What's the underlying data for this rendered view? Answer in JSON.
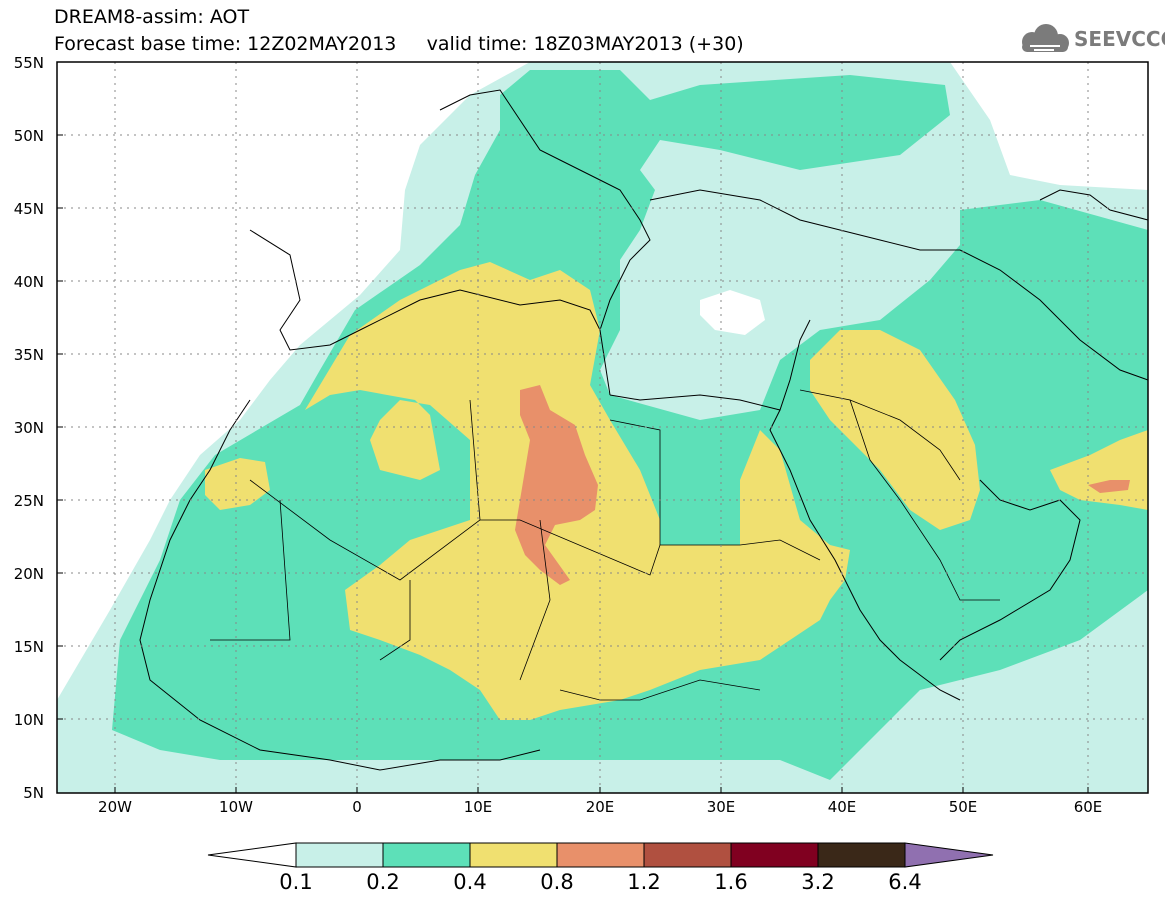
{
  "header": {
    "title_line1": "DREAM8-assim: AOT",
    "title_line2": "Forecast base time: 12Z02MAY2013     valid time: 18Z03MAY2013 (+30)",
    "logo_text": "SEEVCCC",
    "logo_icon": "cloud-logo-icon"
  },
  "map": {
    "latitude_labels": [
      "55N",
      "50N",
      "45N",
      "40N",
      "35N",
      "30N",
      "25N",
      "20N",
      "15N",
      "10N",
      "5N"
    ],
    "longitude_labels": [
      "20W",
      "10W",
      "0",
      "10E",
      "20E",
      "30E",
      "40E",
      "50E",
      "60E"
    ],
    "lat_values": [
      55,
      50,
      45,
      40,
      35,
      30,
      25,
      20,
      15,
      10,
      5
    ],
    "lon_values": [
      -20,
      -10,
      0,
      10,
      20,
      30,
      40,
      50,
      60
    ],
    "extent": {
      "lon_min": -25,
      "lon_max": 65,
      "lat_min": 5,
      "lat_max": 55
    },
    "grid": "dotted"
  },
  "legend": {
    "variable": "AOT",
    "levels": [
      "0.1",
      "0.2",
      "0.4",
      "0.8",
      "1.2",
      "1.6",
      "3.2",
      "6.4"
    ],
    "colors": [
      "#ffffff",
      "#c8f0e8",
      "#5de0b8",
      "#f0e070",
      "#e8906a",
      "#b05040",
      "#800020",
      "#3a2818",
      "#9070b0"
    ]
  }
}
